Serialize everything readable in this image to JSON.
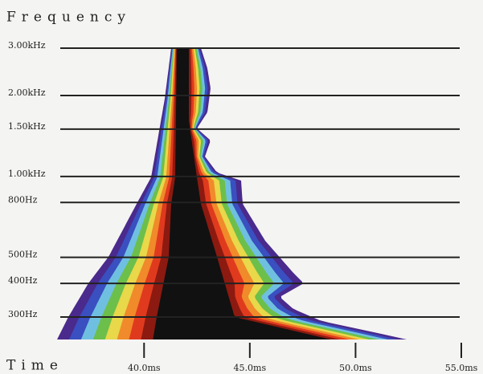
{
  "chart_data": {
    "type": "decay-spectrogram",
    "y_label": "Frequency",
    "x_label": "Time",
    "ylim": [
      300,
      3000
    ],
    "log_y": true,
    "yticks": [
      {
        "value": 3000,
        "label": "3.00kHz"
      },
      {
        "value": 2000,
        "label": "2.00kHz"
      },
      {
        "value": 1500,
        "label": "1.50kHz"
      },
      {
        "value": 1000,
        "label": "1.00kHz"
      },
      {
        "value": 800,
        "label": "800Hz"
      },
      {
        "value": 500,
        "label": "500Hz"
      },
      {
        "value": 400,
        "label": "400Hz"
      },
      {
        "value": 300,
        "label": "300Hz"
      }
    ],
    "xlim": [
      36,
      55
    ],
    "xticks": [
      {
        "value": 40,
        "label": "40.0ms"
      },
      {
        "value": 45,
        "label": "45.0ms"
      },
      {
        "value": 50,
        "label": "50.0ms"
      },
      {
        "value": 55,
        "label": "55.0ms"
      }
    ],
    "grid": true
  }
}
